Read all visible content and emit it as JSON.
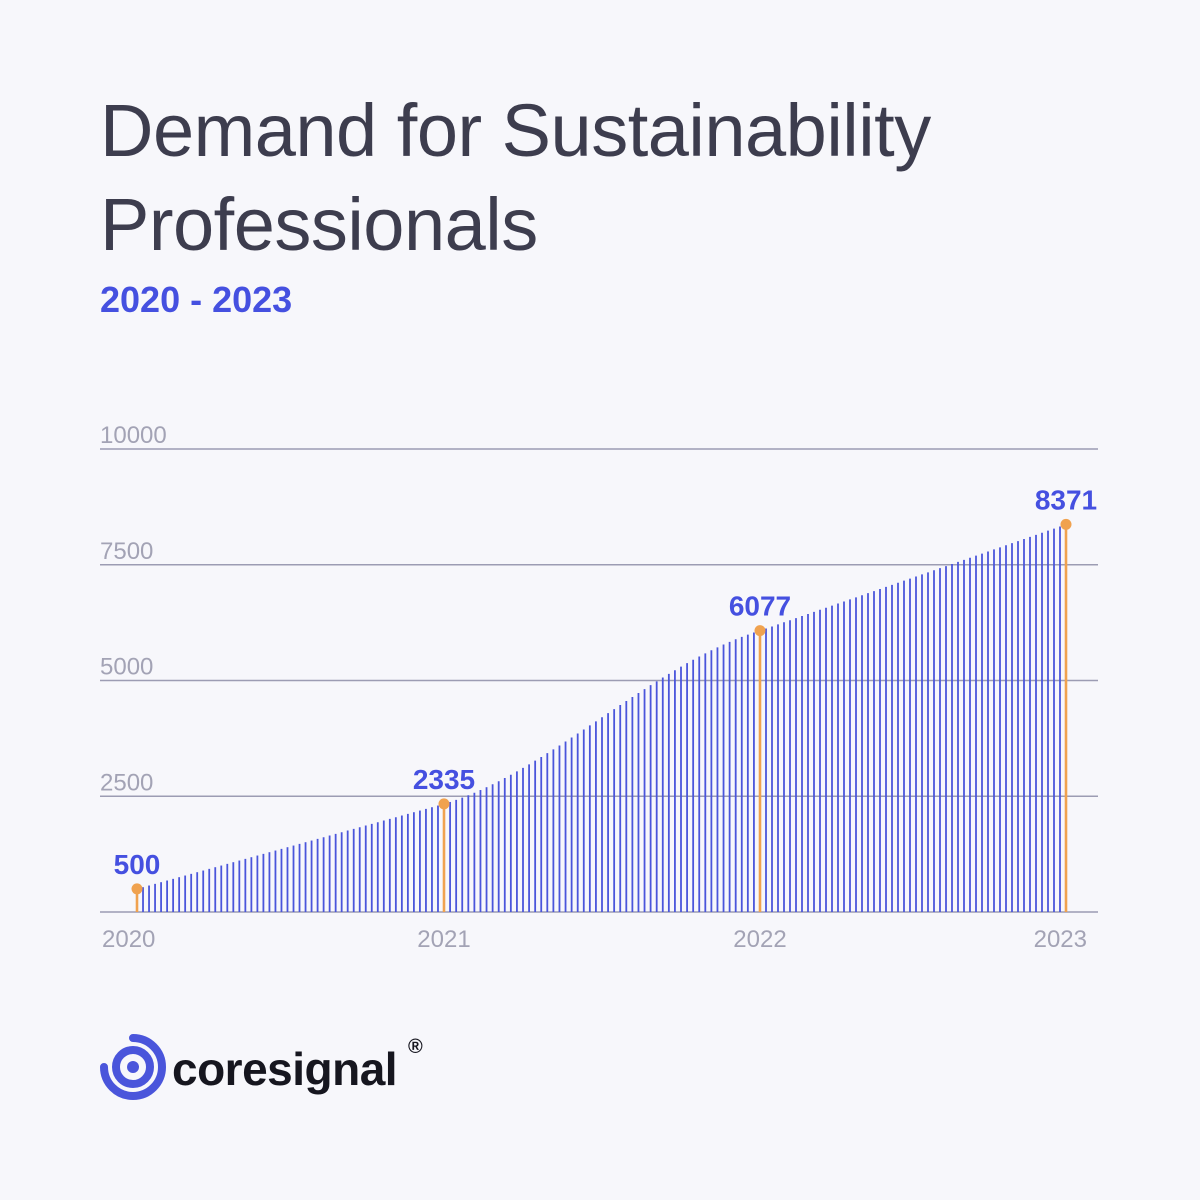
{
  "header": {
    "title": "Demand for Sustainability Professionals",
    "subtitle": "2020 - 2023"
  },
  "brand": {
    "name": "coresignal",
    "registered_mark": "®",
    "logo_icon": "coresignal-logo-icon"
  },
  "colors": {
    "bar": "#4a55db",
    "highlight": "#f0a24f",
    "value_label": "#4550e0",
    "grid": "#9c9cb3",
    "tick_label": "#a3a3b5"
  },
  "chart_data": {
    "type": "bar",
    "title": "Demand for Sustainability Professionals",
    "subtitle": "2020 - 2023",
    "xlabel": "",
    "ylabel": "",
    "ylim": [
      0,
      10000
    ],
    "y_ticks": [
      0,
      2500,
      5000,
      7500,
      10000
    ],
    "y_tick_labels": [
      "",
      "2500",
      "5000",
      "7500",
      "10000"
    ],
    "x_tick_labels": [
      "2020",
      "2021",
      "2022",
      "2023"
    ],
    "grid": true,
    "highlights": [
      {
        "x": "2020",
        "value": 500,
        "label": "500"
      },
      {
        "x": "2021",
        "value": 2335,
        "label": "2335"
      },
      {
        "x": "2022",
        "value": 6077,
        "label": "6077"
      },
      {
        "x": "2023",
        "value": 8371,
        "label": "8371"
      }
    ],
    "series_description": "approximately weekly observations between the highlighted year points",
    "segments": [
      {
        "from": "2020",
        "to": "2021",
        "start": 500,
        "end": 2335,
        "shape": "linear"
      },
      {
        "from": "2021",
        "to": "2022",
        "start": 2335,
        "end": 6077,
        "shape": "s-curve"
      },
      {
        "from": "2022",
        "to": "2023",
        "start": 6077,
        "end": 8371,
        "shape": "linear"
      }
    ]
  }
}
